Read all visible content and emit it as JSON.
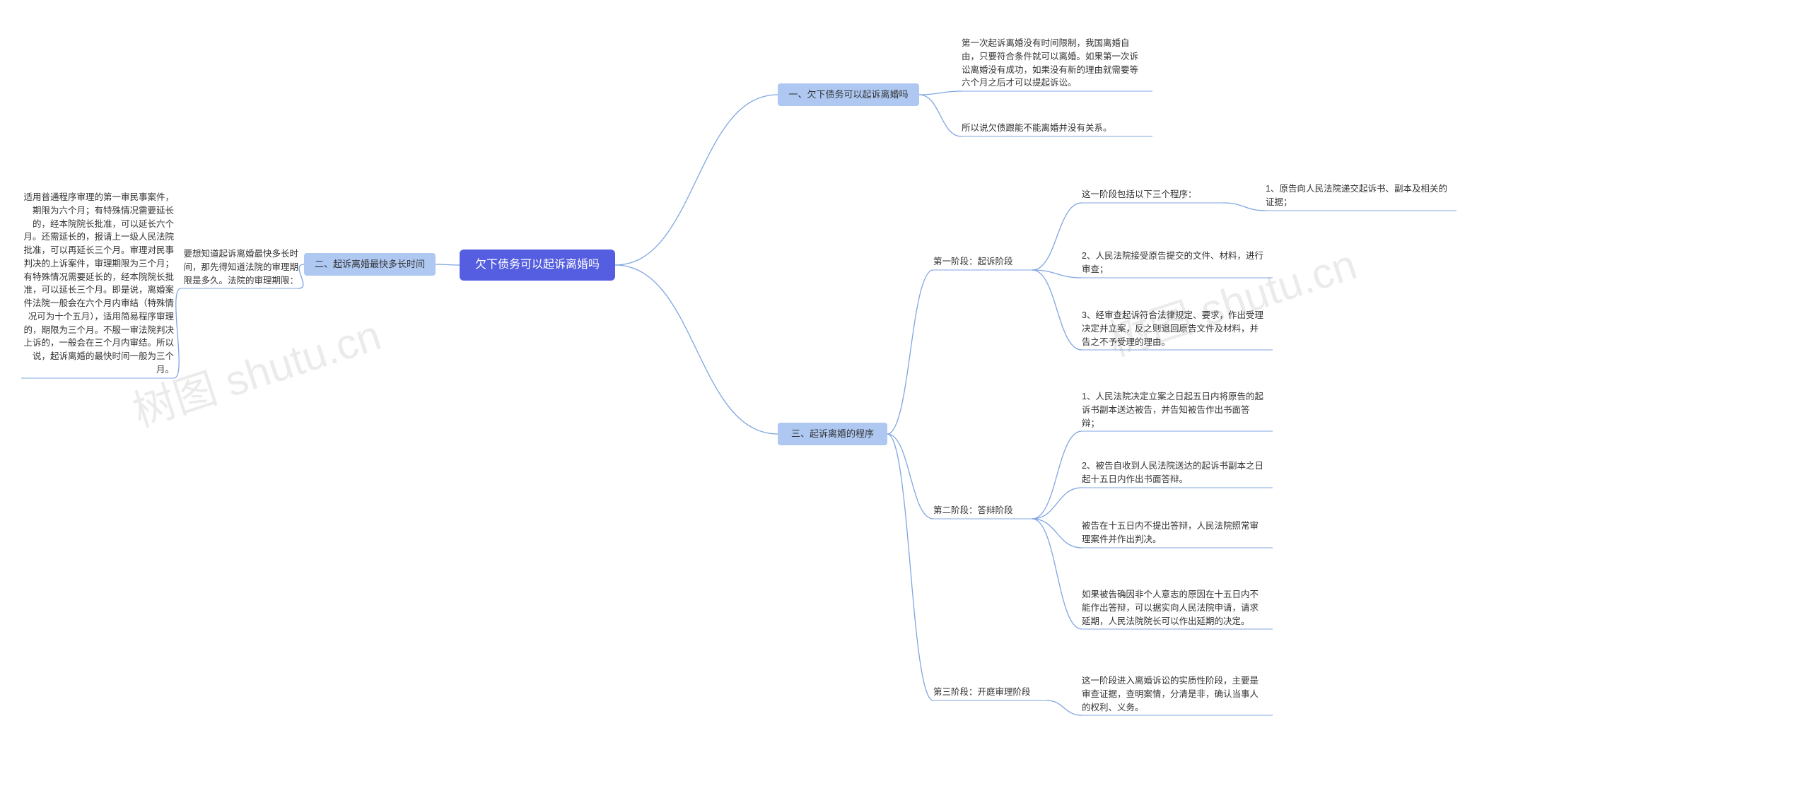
{
  "root": {
    "label": "欠下债务可以起诉离婚吗",
    "bg": "#555ee0",
    "fg": "#ffffff",
    "fontsize": 16
  },
  "branch1": {
    "label": "一、欠下债务可以起诉离婚吗",
    "bg": "#aec8f2",
    "fg": "#333333",
    "leaves": [
      "第一次起诉离婚没有时间限制，我国离婚自由，只要符合条件就可以离婚。如果第一次诉讼离婚没有成功，如果没有新的理由就需要等六个月之后才可以提起诉讼。",
      "所以说欠债跟能不能离婚并没有关系。"
    ]
  },
  "branch2": {
    "label": "二、起诉离婚最快多长时间",
    "bg": "#aec8f2",
    "fg": "#333333",
    "child": {
      "label": "要想知道起诉离婚最快多长时间，那先得知道法院的审理期限是多久。法院的审理期限：",
      "leaf": "适用普通程序审理的第一审民事案件，期限为六个月；有特殊情况需要延长的，经本院院长批准，可以延长六个月。还需延长的，报请上一级人民法院批准，可以再延长三个月。审理对民事判决的上诉案件，审理期限为三个月；有特殊情况需要延长的，经本院院长批准，可以延长三个月。即是说，离婚案件法院一般会在六个月内审结（特殊情况可为十个五月），适用简易程序审理的，期限为三个月。不服一审法院判决上诉的，一般会在三个月内审结。所以说，起诉离婚的最快时间一般为三个月。"
    }
  },
  "branch3": {
    "label": "三、起诉离婚的程序",
    "bg": "#aec8f2",
    "fg": "#333333",
    "children": [
      {
        "label": "第一阶段：起诉阶段",
        "intro": "这一阶段包括以下三个程序：",
        "items": [
          "1、原告向人民法院递交起诉书、副本及相关的证据；",
          "2、人民法院接受原告提交的文件、材料，进行审查；",
          "3、经审查起诉符合法律规定、要求，作出受理决定并立案，反之则退回原告文件及材料，并告之不予受理的理由。"
        ]
      },
      {
        "label": "第二阶段：答辩阶段",
        "items": [
          "1、人民法院决定立案之日起五日内将原告的起诉书副本送达被告，并告知被告作出书面答辩；",
          "2、被告自收到人民法院送达的起诉书副本之日起十五日内作出书面答辩。",
          "被告在十五日内不提出答辩，人民法院照常审理案件并作出判决。",
          "如果被告确因非个人意志的原因在十五日内不能作出答辩，可以据实向人民法院申请，请求延期，人民法院院长可以作出延期的决定。"
        ]
      },
      {
        "label": "第三阶段：开庭审理阶段",
        "items": [
          "这一阶段进入离婚诉讼的实质性阶段，主要是审查证据，查明案情，分清是非，确认当事人的权利、义务。"
        ]
      }
    ]
  },
  "watermark_text": "树图 shutu.cn",
  "edge_color": "#7fa5e0",
  "leaf_underline_color": "#7fa5e0",
  "background": "#ffffff"
}
